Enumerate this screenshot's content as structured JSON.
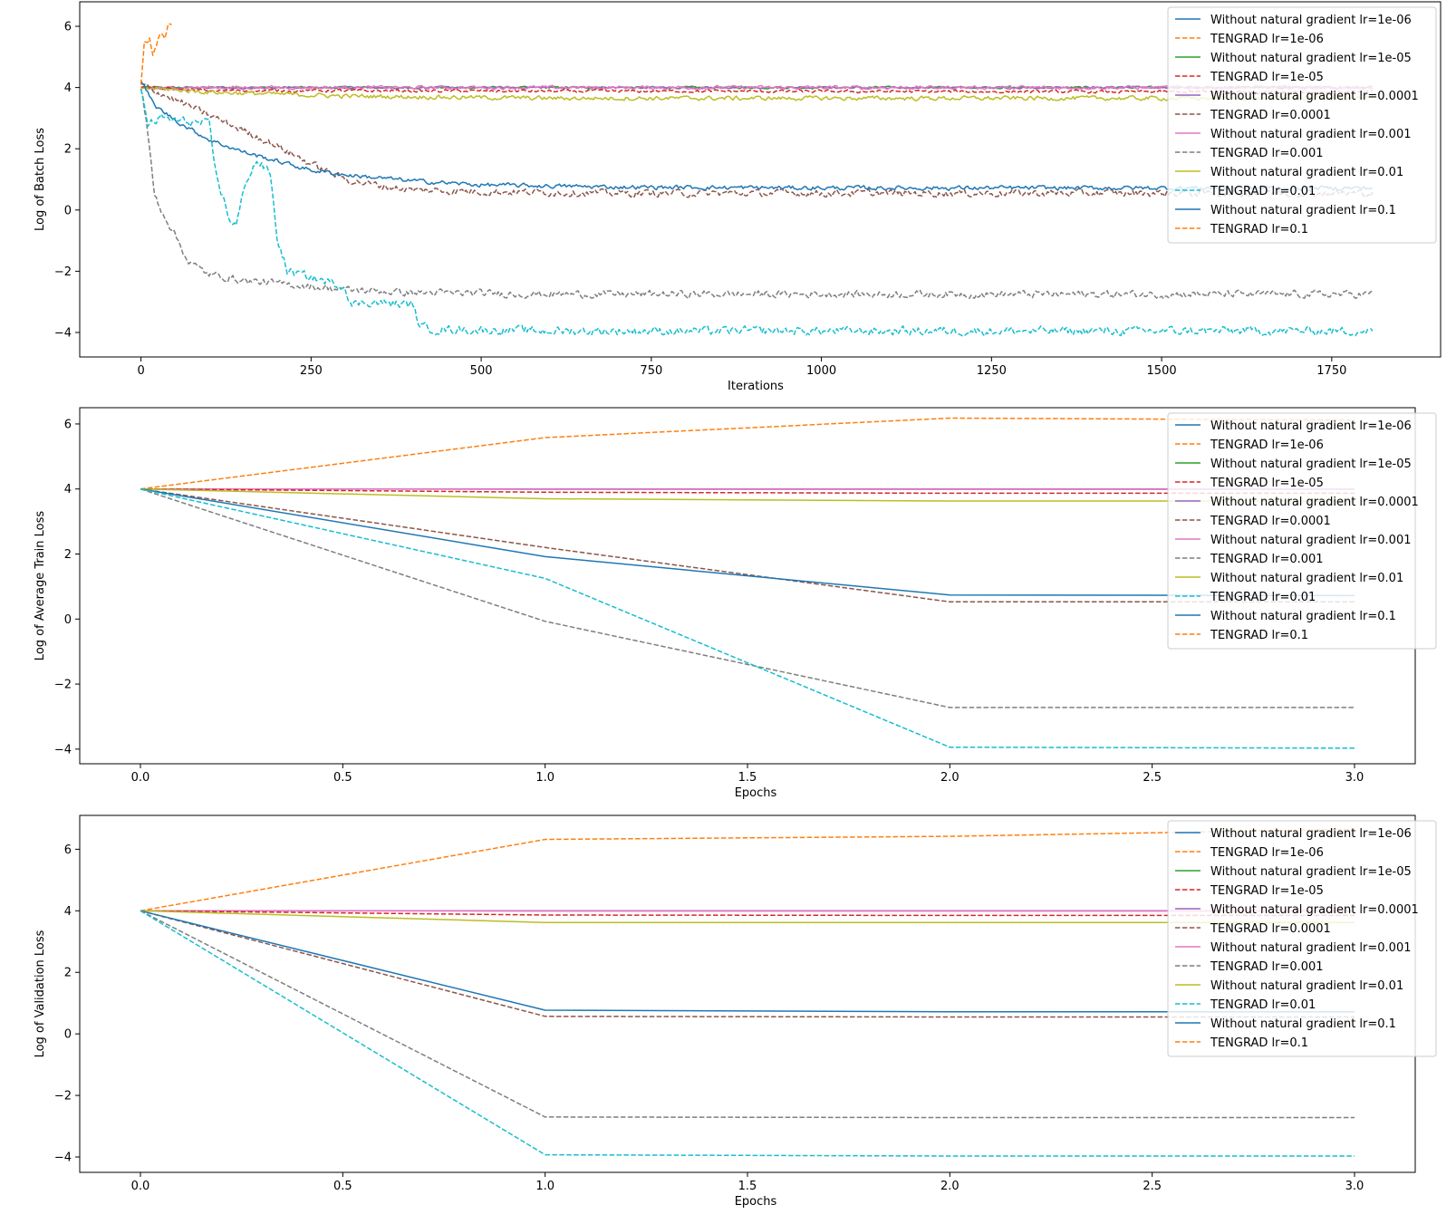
{
  "colors": {
    "c0": "#1f77b4",
    "c1": "#ff7f0e",
    "c2": "#2ca02c",
    "c3": "#d62728",
    "c4": "#9467bd",
    "c5": "#8c564b",
    "c6": "#e377c2",
    "c7": "#7f7f7f",
    "c8": "#bcbd22",
    "c9": "#17becf"
  },
  "chart_data": [
    {
      "type": "line",
      "xlabel": "Iterations",
      "ylabel": "Log of Batch Loss",
      "xlim": [
        -90,
        1910
      ],
      "ylim": [
        -4.8,
        6.8
      ],
      "xticks": [
        0,
        250,
        500,
        750,
        1000,
        1250,
        1500,
        1750
      ],
      "xtick_labels": [
        "0",
        "250",
        "500",
        "750",
        "1000",
        "1250",
        "1500",
        "1750"
      ],
      "yticks": [
        -4,
        -2,
        0,
        2,
        4,
        6
      ],
      "ytick_labels": [
        "−4",
        "−2",
        "0",
        "2",
        "4",
        "6"
      ],
      "legend_position": "upper right",
      "legend": [
        {
          "label": "Without natural gradient lr=1e-06",
          "color": "#1f77b4",
          "dashed": false
        },
        {
          "label": "TENGRAD lr=1e-06",
          "color": "#ff7f0e",
          "dashed": true
        },
        {
          "label": "Without natural gradient lr=1e-05",
          "color": "#2ca02c",
          "dashed": false
        },
        {
          "label": "TENGRAD lr=1e-05",
          "color": "#d62728",
          "dashed": true
        },
        {
          "label": "Without natural gradient lr=0.0001",
          "color": "#9467bd",
          "dashed": false
        },
        {
          "label": "TENGRAD lr=0.0001",
          "color": "#8c564b",
          "dashed": true
        },
        {
          "label": "Without natural gradient lr=0.001",
          "color": "#e377c2",
          "dashed": false
        },
        {
          "label": "TENGRAD lr=0.001",
          "color": "#7f7f7f",
          "dashed": true
        },
        {
          "label": "Without natural gradient lr=0.01",
          "color": "#bcbd22",
          "dashed": false
        },
        {
          "label": "TENGRAD lr=0.01",
          "color": "#17becf",
          "dashed": true
        },
        {
          "label": "Without natural gradient lr=0.1",
          "color": "#1f77b4",
          "dashed": false
        },
        {
          "label": "TENGRAD lr=0.1",
          "color": "#ff7f0e",
          "dashed": true
        }
      ],
      "series": [
        {
          "color": "#2ca02c",
          "dashed": false,
          "x": [
            0,
            1810
          ],
          "y": [
            4.0,
            4.0
          ],
          "noise": 0.03
        },
        {
          "color": "#9467bd",
          "dashed": false,
          "x": [
            0,
            1810
          ],
          "y": [
            4.0,
            4.0
          ],
          "noise": 0.03
        },
        {
          "color": "#e377c2",
          "dashed": false,
          "x": [
            0,
            20,
            60,
            1810
          ],
          "y": [
            4.0,
            3.95,
            4.0,
            4.0
          ],
          "noise": 0.05
        },
        {
          "color": "#d62728",
          "dashed": true,
          "x": [
            0,
            100,
            1810
          ],
          "y": [
            4.0,
            3.9,
            3.85
          ],
          "noise": 0.04
        },
        {
          "color": "#bcbd22",
          "dashed": false,
          "x": [
            0,
            100,
            300,
            600,
            1810
          ],
          "y": [
            4.0,
            3.85,
            3.72,
            3.65,
            3.65
          ],
          "noise": 0.06
        },
        {
          "color": "#8c564b",
          "dashed": true,
          "x": [
            0,
            50,
            100,
            150,
            200,
            250,
            300,
            350,
            400,
            500,
            700,
            1000,
            1810
          ],
          "y": [
            4.1,
            3.6,
            3.1,
            2.6,
            2.1,
            1.5,
            1.0,
            0.8,
            0.65,
            0.6,
            0.55,
            0.55,
            0.55
          ],
          "noise": 0.1
        },
        {
          "color": "#1f77b4",
          "dashed": false,
          "x": [
            0,
            20,
            60,
            100,
            150,
            200,
            250,
            300,
            400,
            500,
            700,
            1000,
            1810
          ],
          "y": [
            4.25,
            3.4,
            2.8,
            2.3,
            1.9,
            1.6,
            1.3,
            1.15,
            0.95,
            0.82,
            0.75,
            0.72,
            0.72
          ],
          "noise": 0.06
        },
        {
          "color": "#7f7f7f",
          "dashed": true,
          "x": [
            0,
            10,
            20,
            30,
            50,
            70,
            100,
            150,
            200,
            300,
            400,
            600,
            1810
          ],
          "y": [
            4.0,
            2.5,
            0.5,
            0.0,
            -0.8,
            -1.7,
            -2.1,
            -2.3,
            -2.4,
            -2.6,
            -2.7,
            -2.75,
            -2.75
          ],
          "noise": 0.1
        },
        {
          "color": "#17becf",
          "dashed": true,
          "x": [
            0,
            10,
            30,
            60,
            100,
            110,
            130,
            140,
            155,
            170,
            190,
            200,
            215,
            300,
            310,
            330,
            400,
            410,
            430,
            600,
            1810
          ],
          "y": [
            4.0,
            2.8,
            3.0,
            2.9,
            2.8,
            1.2,
            -0.3,
            -0.5,
            1.0,
            1.6,
            1.2,
            -0.9,
            -2.0,
            -2.5,
            -3.1,
            -3.0,
            -3.1,
            -3.8,
            -3.9,
            -3.95,
            -3.95
          ],
          "noise": 0.12
        },
        {
          "color": "#ff7f0e",
          "dashed": true,
          "x": [
            0,
            5,
            12,
            18,
            25,
            30,
            35,
            40,
            45
          ],
          "y": [
            4.0,
            5.4,
            5.6,
            5.0,
            5.6,
            5.9,
            5.7,
            6.1,
            6.0
          ],
          "noise": 0.12
        }
      ]
    },
    {
      "type": "line",
      "xlabel": "Epochs",
      "ylabel": "Log of Average Train Loss",
      "xlim": [
        -0.15,
        3.15
      ],
      "ylim": [
        -4.45,
        6.5
      ],
      "xticks": [
        0.0,
        0.5,
        1.0,
        1.5,
        2.0,
        2.5,
        3.0
      ],
      "xtick_labels": [
        "0.0",
        "0.5",
        "1.0",
        "1.5",
        "2.0",
        "2.5",
        "3.0"
      ],
      "yticks": [
        -4,
        -2,
        0,
        2,
        4,
        6
      ],
      "ytick_labels": [
        "−4",
        "−2",
        "0",
        "2",
        "4",
        "6"
      ],
      "legend_position": "upper right",
      "legend": [
        {
          "label": "Without natural gradient lr=1e-06",
          "color": "#1f77b4",
          "dashed": false
        },
        {
          "label": "TENGRAD lr=1e-06",
          "color": "#ff7f0e",
          "dashed": true
        },
        {
          "label": "Without natural gradient lr=1e-05",
          "color": "#2ca02c",
          "dashed": false
        },
        {
          "label": "TENGRAD lr=1e-05",
          "color": "#d62728",
          "dashed": true
        },
        {
          "label": "Without natural gradient lr=0.0001",
          "color": "#9467bd",
          "dashed": false
        },
        {
          "label": "TENGRAD lr=0.0001",
          "color": "#8c564b",
          "dashed": true
        },
        {
          "label": "Without natural gradient lr=0.001",
          "color": "#e377c2",
          "dashed": false
        },
        {
          "label": "TENGRAD lr=0.001",
          "color": "#7f7f7f",
          "dashed": true
        },
        {
          "label": "Without natural gradient lr=0.01",
          "color": "#bcbd22",
          "dashed": false
        },
        {
          "label": "TENGRAD lr=0.01",
          "color": "#17becf",
          "dashed": true
        },
        {
          "label": "Without natural gradient lr=0.1",
          "color": "#1f77b4",
          "dashed": false
        },
        {
          "label": "TENGRAD lr=0.1",
          "color": "#ff7f0e",
          "dashed": true
        }
      ],
      "series": [
        {
          "color": "#ff7f0e",
          "dashed": true,
          "x": [
            0,
            1,
            2,
            3
          ],
          "y": [
            4.0,
            5.58,
            6.18,
            6.12
          ]
        },
        {
          "color": "#2ca02c",
          "dashed": false,
          "x": [
            0,
            1,
            2,
            3
          ],
          "y": [
            4.0,
            4.0,
            4.0,
            4.0
          ]
        },
        {
          "color": "#9467bd",
          "dashed": false,
          "x": [
            0,
            1,
            2,
            3
          ],
          "y": [
            4.0,
            4.0,
            4.0,
            4.0
          ]
        },
        {
          "color": "#e377c2",
          "dashed": false,
          "x": [
            0,
            1,
            2,
            3
          ],
          "y": [
            4.0,
            3.99,
            3.99,
            3.99
          ]
        },
        {
          "color": "#d62728",
          "dashed": true,
          "x": [
            0,
            1,
            2,
            3
          ],
          "y": [
            4.0,
            3.9,
            3.87,
            3.87
          ]
        },
        {
          "color": "#bcbd22",
          "dashed": false,
          "x": [
            0,
            1,
            2,
            3
          ],
          "y": [
            4.0,
            3.7,
            3.63,
            3.63
          ]
        },
        {
          "color": "#8c564b",
          "dashed": true,
          "x": [
            0,
            1,
            2,
            3
          ],
          "y": [
            4.0,
            2.2,
            0.53,
            0.53
          ]
        },
        {
          "color": "#1f77b4",
          "dashed": false,
          "x": [
            0,
            1,
            2,
            3
          ],
          "y": [
            4.0,
            1.92,
            0.74,
            0.72
          ]
        },
        {
          "color": "#7f7f7f",
          "dashed": true,
          "x": [
            0,
            1,
            2,
            3
          ],
          "y": [
            4.0,
            -0.07,
            -2.72,
            -2.72
          ]
        },
        {
          "color": "#17becf",
          "dashed": true,
          "x": [
            0,
            1,
            2,
            3
          ],
          "y": [
            4.0,
            1.25,
            -3.94,
            -3.97
          ]
        }
      ]
    },
    {
      "type": "line",
      "xlabel": "Epochs",
      "ylabel": "Log of Validation Loss",
      "xlim": [
        -0.15,
        3.15
      ],
      "ylim": [
        -4.5,
        7.1
      ],
      "xticks": [
        0.0,
        0.5,
        1.0,
        1.5,
        2.0,
        2.5,
        3.0
      ],
      "xtick_labels": [
        "0.0",
        "0.5",
        "1.0",
        "1.5",
        "2.0",
        "2.5",
        "3.0"
      ],
      "yticks": [
        -4,
        -2,
        0,
        2,
        4,
        6
      ],
      "ytick_labels": [
        "−4",
        "−2",
        "0",
        "2",
        "4",
        "6"
      ],
      "legend_position": "upper right",
      "legend": [
        {
          "label": "Without natural gradient lr=1e-06",
          "color": "#1f77b4",
          "dashed": false
        },
        {
          "label": "TENGRAD lr=1e-06",
          "color": "#ff7f0e",
          "dashed": true
        },
        {
          "label": "Without natural gradient lr=1e-05",
          "color": "#2ca02c",
          "dashed": false
        },
        {
          "label": "TENGRAD lr=1e-05",
          "color": "#d62728",
          "dashed": true
        },
        {
          "label": "Without natural gradient lr=0.0001",
          "color": "#9467bd",
          "dashed": false
        },
        {
          "label": "TENGRAD lr=0.0001",
          "color": "#8c564b",
          "dashed": true
        },
        {
          "label": "Without natural gradient lr=0.001",
          "color": "#e377c2",
          "dashed": false
        },
        {
          "label": "TENGRAD lr=0.001",
          "color": "#7f7f7f",
          "dashed": true
        },
        {
          "label": "Without natural gradient lr=0.01",
          "color": "#bcbd22",
          "dashed": false
        },
        {
          "label": "TENGRAD lr=0.01",
          "color": "#17becf",
          "dashed": true
        },
        {
          "label": "Without natural gradient lr=0.1",
          "color": "#1f77b4",
          "dashed": false
        },
        {
          "label": "TENGRAD lr=0.1",
          "color": "#ff7f0e",
          "dashed": true
        }
      ],
      "series": [
        {
          "color": "#ff7f0e",
          "dashed": true,
          "x": [
            0,
            1,
            2,
            3
          ],
          "y": [
            4.0,
            6.32,
            6.42,
            6.65
          ]
        },
        {
          "color": "#2ca02c",
          "dashed": false,
          "x": [
            0,
            1,
            2,
            3
          ],
          "y": [
            4.0,
            4.0,
            4.0,
            4.0
          ]
        },
        {
          "color": "#9467bd",
          "dashed": false,
          "x": [
            0,
            1,
            2,
            3
          ],
          "y": [
            4.0,
            4.0,
            4.0,
            4.0
          ]
        },
        {
          "color": "#e377c2",
          "dashed": false,
          "x": [
            0,
            1,
            2,
            3
          ],
          "y": [
            4.0,
            3.99,
            3.99,
            3.99
          ]
        },
        {
          "color": "#d62728",
          "dashed": true,
          "x": [
            0,
            1,
            2,
            3
          ],
          "y": [
            4.0,
            3.86,
            3.85,
            3.85
          ]
        },
        {
          "color": "#bcbd22",
          "dashed": false,
          "x": [
            0,
            1,
            2,
            3
          ],
          "y": [
            4.0,
            3.62,
            3.62,
            3.62
          ]
        },
        {
          "color": "#8c564b",
          "dashed": true,
          "x": [
            0,
            1,
            2,
            3
          ],
          "y": [
            4.0,
            0.57,
            0.55,
            0.55
          ]
        },
        {
          "color": "#1f77b4",
          "dashed": false,
          "x": [
            0,
            1,
            2,
            3
          ],
          "y": [
            4.0,
            0.77,
            0.72,
            0.72
          ]
        },
        {
          "color": "#7f7f7f",
          "dashed": true,
          "x": [
            0,
            1,
            2,
            3
          ],
          "y": [
            4.0,
            -2.7,
            -2.72,
            -2.72
          ]
        },
        {
          "color": "#17becf",
          "dashed": true,
          "x": [
            0,
            1,
            2,
            3
          ],
          "y": [
            4.0,
            -3.93,
            -3.97,
            -3.97
          ]
        }
      ]
    }
  ]
}
